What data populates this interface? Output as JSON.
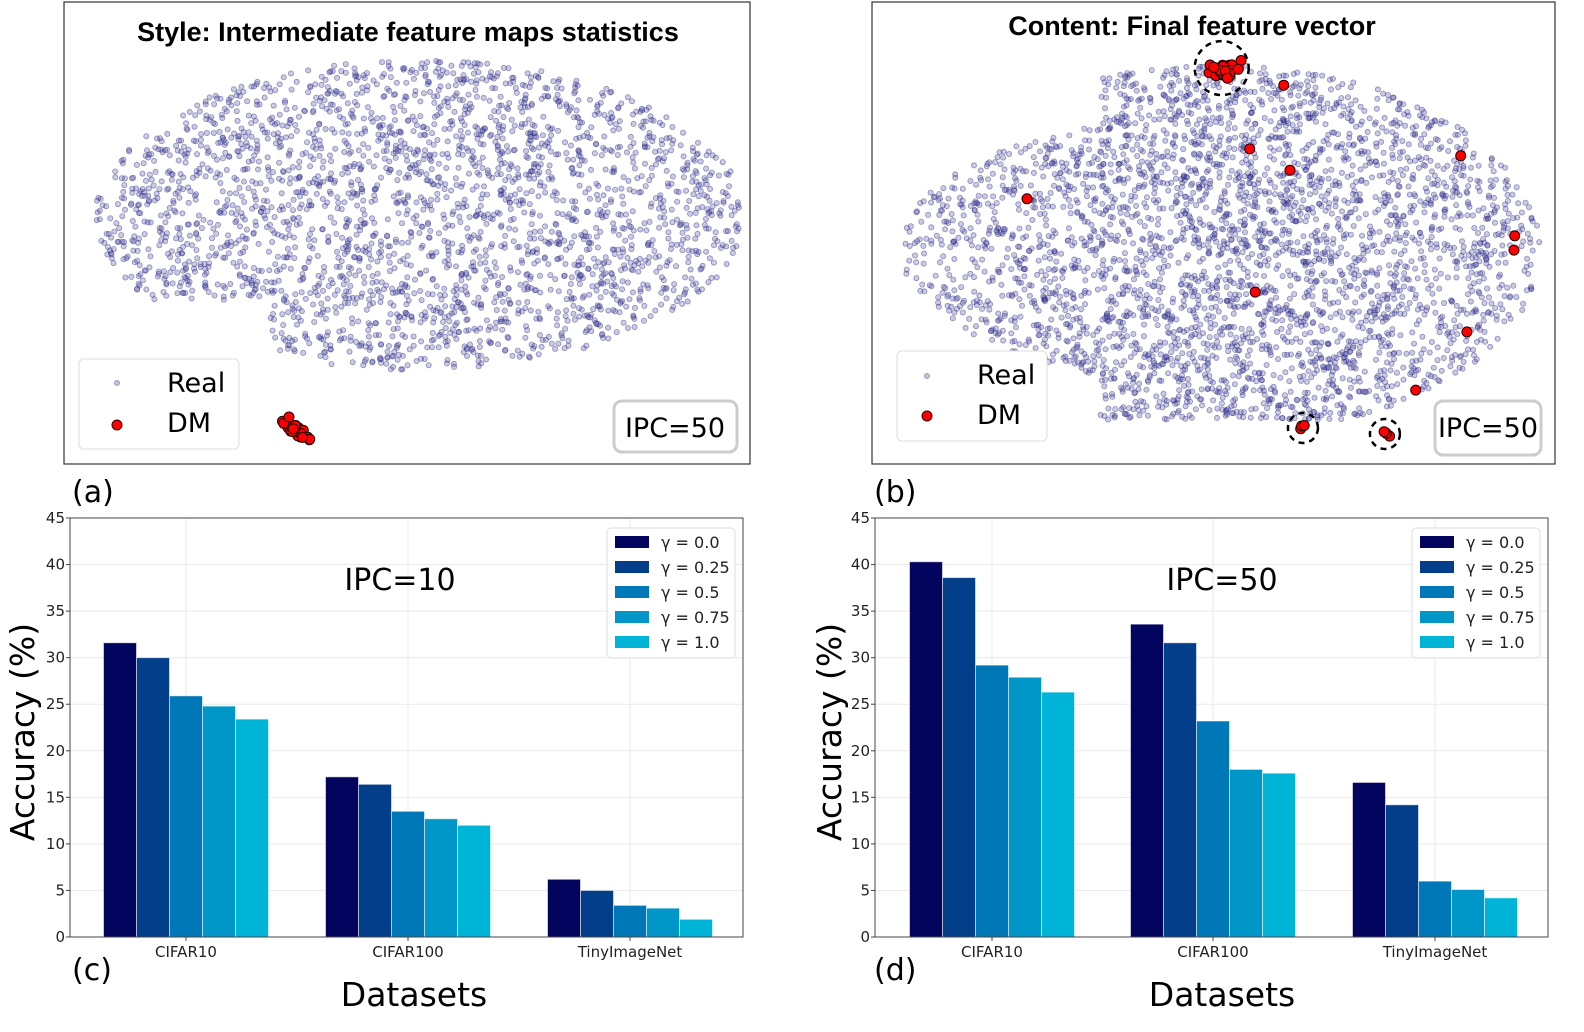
{
  "chart_data": [
    {
      "panel": "(a)",
      "type": "scatter",
      "title": "Style:  Intermediate feature maps statistics",
      "axes_visible": false,
      "legend": {
        "placement": "bottom-left",
        "entries": [
          "Real",
          "DM"
        ]
      },
      "annotation": "IPC=50",
      "series": [
        {
          "name": "Real",
          "color": "#3b3b96",
          "alpha": 0.3
        },
        {
          "name": "DM",
          "color": "#ff0000",
          "clusters": [
            {
              "x": 34.1,
              "y": 6.9,
              "n": 25
            }
          ]
        }
      ]
    },
    {
      "panel": "(b)",
      "type": "scatter",
      "title": "Content: Final feature vector",
      "axes_visible": false,
      "legend": {
        "placement": "bottom-left",
        "entries": [
          "Real",
          "DM"
        ]
      },
      "annotation": "IPC=50",
      "series": [
        {
          "name": "Real",
          "color": "#3b3b96",
          "alpha": 0.3
        },
        {
          "name": "DM",
          "color": "#ff0000",
          "clusters": [
            {
              "x": 51.2,
              "y": 85.7,
              "n": 22,
              "circled": true
            },
            {
              "x": 60.3,
              "y": 82.0,
              "n": 1
            },
            {
              "x": 55.3,
              "y": 68.2,
              "n": 1
            },
            {
              "x": 61.2,
              "y": 63.6,
              "n": 1
            },
            {
              "x": 86.2,
              "y": 66.7,
              "n": 1
            },
            {
              "x": 22.7,
              "y": 57.4,
              "n": 1
            },
            {
              "x": 94.1,
              "y": 49.4,
              "n": 1
            },
            {
              "x": 94.0,
              "y": 46.3,
              "n": 1
            },
            {
              "x": 56.1,
              "y": 37.2,
              "n": 1
            },
            {
              "x": 87.1,
              "y": 28.6,
              "n": 1
            },
            {
              "x": 79.6,
              "y": 16.0,
              "n": 1
            },
            {
              "x": 63.1,
              "y": 7.8,
              "n": 3,
              "circled": true
            },
            {
              "x": 75.1,
              "y": 6.5,
              "n": 3,
              "circled": true
            }
          ]
        }
      ]
    },
    {
      "panel": "(c)",
      "type": "bar",
      "annotation": "IPC=10",
      "xlabel": "Datasets",
      "ylabel": "Accuracy (%)",
      "ylim": [
        0,
        45
      ],
      "yticks": [
        0,
        5,
        10,
        15,
        20,
        25,
        30,
        35,
        40,
        45
      ],
      "grid": true,
      "legend_placement": "top-right",
      "categories": [
        "CIFAR10",
        "CIFAR100",
        "TinyImageNet"
      ],
      "series": [
        {
          "name": "γ = 0.0",
          "color": "#03045e",
          "values": [
            31.6,
            17.2,
            6.2
          ]
        },
        {
          "name": "γ = 0.25",
          "color": "#023e8a",
          "values": [
            30.0,
            16.4,
            5.0
          ]
        },
        {
          "name": "γ = 0.5",
          "color": "#0077b6",
          "values": [
            25.9,
            13.5,
            3.4
          ]
        },
        {
          "name": "γ = 0.75",
          "color": "#0096c7",
          "values": [
            24.8,
            12.7,
            3.1
          ]
        },
        {
          "name": "γ = 1.0",
          "color": "#00b4d8",
          "values": [
            23.4,
            12.0,
            1.9
          ]
        }
      ]
    },
    {
      "panel": "(d)",
      "type": "bar",
      "annotation": "IPC=50",
      "xlabel": "Datasets",
      "ylabel": "Accuracy (%)",
      "ylim": [
        0,
        45
      ],
      "yticks": [
        0,
        5,
        10,
        15,
        20,
        25,
        30,
        35,
        40,
        45
      ],
      "grid": true,
      "legend_placement": "top-right",
      "categories": [
        "CIFAR10",
        "CIFAR100",
        "TinyImageNet"
      ],
      "series": [
        {
          "name": "γ = 0.0",
          "color": "#03045e",
          "values": [
            40.3,
            33.6,
            16.6
          ]
        },
        {
          "name": "γ = 0.25",
          "color": "#023e8a",
          "values": [
            38.6,
            31.6,
            14.2
          ]
        },
        {
          "name": "γ = 0.5",
          "color": "#0077b6",
          "values": [
            29.2,
            23.2,
            6.0
          ]
        },
        {
          "name": "γ = 0.75",
          "color": "#0096c7",
          "values": [
            27.9,
            18.0,
            5.1
          ]
        },
        {
          "name": "γ = 1.0",
          "color": "#00b4d8",
          "values": [
            26.3,
            17.6,
            4.2
          ]
        }
      ]
    }
  ]
}
